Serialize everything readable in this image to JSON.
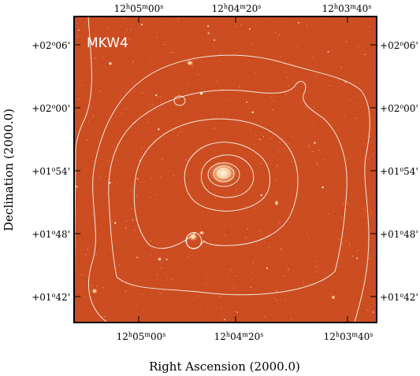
{
  "object_label": "MKW4",
  "x_axis": {
    "label": "Right Ascension (2000.0)",
    "ticks": [
      {
        "h": "12",
        "m": "05",
        "s": "00"
      },
      {
        "h": "12",
        "m": "04",
        "s": "20"
      },
      {
        "h": "12",
        "m": "03",
        "s": "40"
      }
    ]
  },
  "y_axis": {
    "label": "Declination (2000.0)",
    "ticks": [
      {
        "sign": "+",
        "d": "02",
        "m": "06"
      },
      {
        "sign": "+",
        "d": "02",
        "m": "00"
      },
      {
        "sign": "+",
        "d": "01",
        "m": "54"
      },
      {
        "sign": "+",
        "d": "01",
        "m": "48"
      },
      {
        "sign": "+",
        "d": "01",
        "m": "42"
      }
    ]
  },
  "colors": {
    "image_base": "#c8461a",
    "contour": "#f2e8dc",
    "frame": "#000000"
  }
}
